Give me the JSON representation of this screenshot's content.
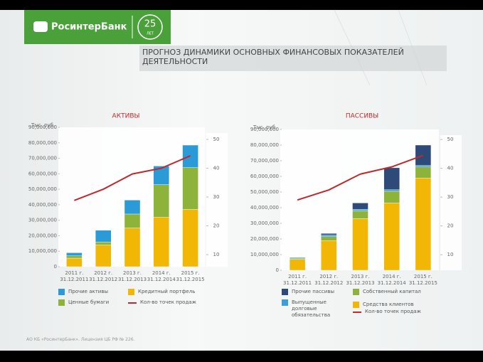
{
  "header": {
    "logo": "РосинтерБанк",
    "badge_number": "25",
    "badge_text": "ЛЕТ",
    "title": "ПРОГНОЗ ДИНАМИКИ ОСНОВНЫХ ФИНАНСОВЫХ ПОКАЗАТЕЛЕЙ ДЕЯТЕЛЬНОСТИ"
  },
  "chart_data": [
    {
      "type": "bar",
      "stacked": true,
      "title": "АКТИВЫ",
      "unit": "Тыс. руб.",
      "categories": [
        "2011 г.",
        "2012 г.",
        "2013 г.",
        "2014 г.",
        "2015 г."
      ],
      "dates": [
        "31.12.2011",
        "31.12.2012",
        "31.12.2013",
        "31.12.2014",
        "31.12.2015"
      ],
      "series": [
        {
          "name": "Кредитный портфель",
          "color": "#f2b705",
          "values": [
            5500000,
            14000000,
            25000000,
            32000000,
            37000000
          ]
        },
        {
          "name": "Ценные бумаги",
          "color": "#8db33a",
          "values": [
            1500000,
            2000000,
            9000000,
            21000000,
            27000000
          ]
        },
        {
          "name": "Прочие активы",
          "color": "#2b9bd8",
          "values": [
            2000000,
            7500000,
            9000000,
            12000000,
            14500000
          ]
        },
        {
          "name": "Кол-во точек продаж",
          "color": "#c0282d",
          "type": "line",
          "axis": "y2",
          "values": [
            28.8,
            32.7,
            38,
            40,
            44.3
          ]
        }
      ],
      "ylim": [
        0,
        90000000
      ],
      "yticks": [
        0,
        {
          "value": 10000000,
          "label": "10,000,000"
        },
        {
          "value": 20000000,
          "label": "20,000,000"
        },
        {
          "value": 30000000,
          "label": "30,000,000"
        },
        {
          "value": 40000000,
          "label": "40,000,000"
        },
        {
          "value": 50000000,
          "label": "50,000,000"
        },
        {
          "value": 60000000,
          "label": "60,000,000"
        },
        {
          "value": 70000000,
          "label": "70,000,000"
        },
        {
          "value": 80000000,
          "label": "80,000,000"
        },
        {
          "value": 90000000,
          "label": "90,000,000"
        }
      ],
      "y2lim": [
        5.8,
        54.2
      ],
      "y2ticks": [
        10,
        20,
        30,
        40,
        50
      ]
    },
    {
      "type": "bar",
      "stacked": true,
      "title": "ПАССИВЫ",
      "unit": "Тыс. руб.",
      "categories": [
        "2011 г.",
        "2012 г.",
        "2013 г.",
        "2014 г.",
        "2015 г."
      ],
      "dates": [
        "31.12.2011",
        "31.12.2012",
        "31.12.2013",
        "31.12.2014",
        "31.12.2015"
      ],
      "series": [
        {
          "name": "Средства клиентов",
          "color": "#f2b705",
          "values": [
            7000000,
            19000000,
            33000000,
            43000000,
            59000000
          ]
        },
        {
          "name": "Собственный капитал",
          "color": "#8db33a",
          "values": [
            700000,
            2500000,
            5000000,
            7500000,
            7000000
          ]
        },
        {
          "name": "Выпущенные долговые обязательства",
          "color": "#3aa0dc",
          "values": [
            500000,
            1000000,
            1000000,
            1000000,
            1000000
          ]
        },
        {
          "name": "Прочие пассивы",
          "color": "#2d4a78",
          "values": [
            0,
            1000000,
            4000000,
            14000000,
            13000000
          ]
        },
        {
          "name": "Кол-во точек продаж",
          "color": "#c0282d",
          "type": "line",
          "axis": "y2",
          "values": [
            29,
            32.5,
            38,
            40.5,
            44.5
          ]
        }
      ],
      "ylim": [
        0,
        90000000
      ],
      "yticks": [
        0,
        {
          "value": 10000000,
          "label": "10,000,000"
        },
        {
          "value": 20000000,
          "label": "20,000,000"
        },
        {
          "value": 30000000,
          "label": "30,000,000"
        },
        {
          "value": 40000000,
          "label": "40,000,000"
        },
        {
          "value": 50000000,
          "label": "50,000,000"
        },
        {
          "value": 60000000,
          "label": "60,000,000"
        },
        {
          "value": 70000000,
          "label": "70,000,000"
        },
        {
          "value": 80000000,
          "label": "80,000,000"
        },
        {
          "value": 90000000,
          "label": "90,000,000"
        }
      ],
      "y2lim": [
        4.6,
        53.5
      ],
      "y2ticks": [
        10,
        20,
        30,
        40,
        50
      ]
    }
  ],
  "footer": "АО КБ «РосинтерБанк». Лицензия ЦБ РФ № 226."
}
